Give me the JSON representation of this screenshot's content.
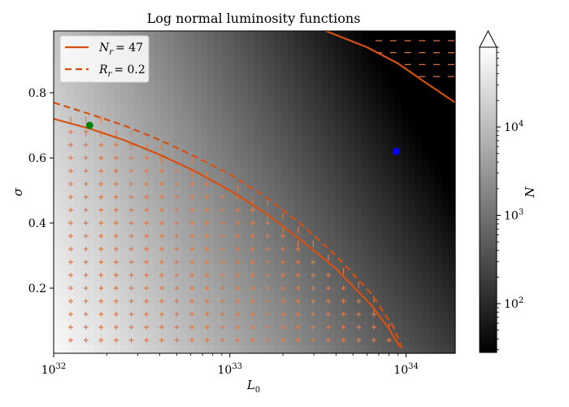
{
  "chart_data": {
    "type": "heatmap",
    "title": "Log normal luminosity functions",
    "xlabel": "L_0",
    "ylabel": "σ",
    "xscale": "log",
    "xlim": [
      1e+32,
      1.9e+34
    ],
    "ylim": [
      0.0,
      0.99
    ],
    "x_ticks": [
      {
        "value": 1e+32,
        "base": "10",
        "exp": "32"
      },
      {
        "value": 1e+33,
        "base": "10",
        "exp": "33"
      },
      {
        "value": 1e+34,
        "base": "10",
        "exp": "34"
      }
    ],
    "y_ticks": [
      {
        "value": 0.2,
        "label": "0.2"
      },
      {
        "value": 0.4,
        "label": "0.4"
      },
      {
        "value": 0.6,
        "label": "0.6"
      },
      {
        "value": 0.8,
        "label": "0.8"
      }
    ],
    "heatmap": {
      "quantity": "N",
      "colormap": "gray",
      "colorbar_scale": "log",
      "colorbar_range": [
        28,
        80000
      ],
      "colorbar_ticks": [
        {
          "value": 100,
          "base": "10",
          "exp": "2"
        },
        {
          "value": 1000,
          "base": "10",
          "exp": "3"
        },
        {
          "value": 10000,
          "base": "10",
          "exp": "4"
        }
      ],
      "colorbar_label": "N",
      "colorbar_extend": "max"
    },
    "series": [
      {
        "name_base": "N",
        "name_sub": "r",
        "name_value": "= 47",
        "style": "solid",
        "color": "#d45113",
        "points": [
          [
            1e+32,
            0.72
          ],
          [
            1.6e+32,
            0.69
          ],
          [
            2.5e+32,
            0.655
          ],
          [
            4e+32,
            0.61
          ],
          [
            6.3e+32,
            0.56
          ],
          [
            1e+33,
            0.5
          ],
          [
            1.6e+33,
            0.43
          ],
          [
            2.5e+33,
            0.35
          ],
          [
            4e+33,
            0.26
          ],
          [
            6.3e+33,
            0.15
          ],
          [
            8e+33,
            0.075
          ],
          [
            9.2e+33,
            0.02
          ]
        ]
      },
      {
        "name_base": "R",
        "name_sub": "r",
        "name_value": "= 0.2",
        "style": "dashed",
        "color": "#d45113",
        "points": [
          [
            1e+32,
            0.77
          ],
          [
            1.6e+32,
            0.735
          ],
          [
            2.5e+32,
            0.7
          ],
          [
            4e+32,
            0.655
          ],
          [
            6.3e+32,
            0.605
          ],
          [
            1e+33,
            0.55
          ],
          [
            1.6e+33,
            0.48
          ],
          [
            2.5e+33,
            0.4
          ],
          [
            4e+33,
            0.3
          ],
          [
            6.3e+33,
            0.185
          ],
          [
            8.5e+33,
            0.08
          ],
          [
            9.5e+33,
            0.015
          ]
        ]
      },
      {
        "name_base": "",
        "name_sub": "",
        "name_value": "",
        "style": "solid",
        "color": "#d45113",
        "points": [
          [
            3.5e+33,
            0.99
          ],
          [
            6e+33,
            0.94
          ],
          [
            9e+33,
            0.89
          ],
          [
            1.3e+34,
            0.83
          ],
          [
            1.9e+34,
            0.77
          ]
        ]
      }
    ],
    "points": [
      {
        "x": 1.6e+32,
        "y": 0.7,
        "color": "#008000"
      },
      {
        "x": 8.8e+33,
        "y": 0.62,
        "color": "#0000ff"
      }
    ],
    "markers": [
      {
        "marker": "+",
        "label": "",
        "x_range": [
          1.25e+32,
          8e+33
        ],
        "columns": 22,
        "y_range": [
          0.04,
          0.72
        ],
        "rows": 18,
        "boundary_series": 0
      },
      {
        "marker": "|",
        "label": "",
        "x_range": [
          1.25e+32,
          8e+33
        ],
        "columns": 22,
        "y_range": [
          0.04,
          0.76
        ],
        "rows": 18,
        "boundary_series": 1
      },
      {
        "marker": "-",
        "label": "",
        "x_range": [
          7e+33,
          1.8e+34
        ],
        "columns": 6,
        "y_range": [
          0.85,
          0.96
        ],
        "rows": 4,
        "boundary_series": 2
      }
    ],
    "legend": "upper-left"
  }
}
